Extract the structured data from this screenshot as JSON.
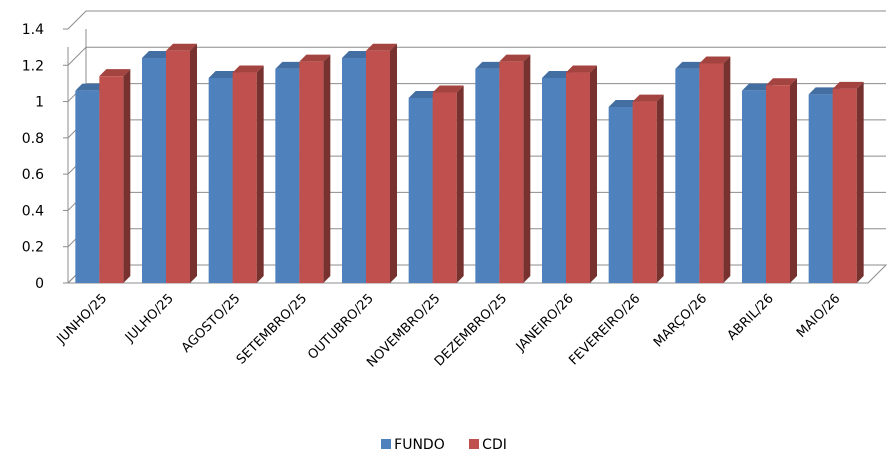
{
  "chart_data": {
    "type": "bar",
    "title": "",
    "xlabel": "",
    "ylabel": "",
    "categories": [
      "JUNHO/25",
      "JULHO/25",
      "AGOSTO/25",
      "SETEMBRO/25",
      "OUTUBRO/25",
      "NOVEMBRO/25",
      "DEZEMBRO/25",
      "JANEIRO/26",
      "FEVEREIRO/26",
      "MARÇO/26",
      "ABRIL/26",
      "MAIO/26"
    ],
    "series": [
      {
        "name": "FUNDO",
        "color": "#4F81BD",
        "values": [
          1.06,
          1.24,
          1.13,
          1.18,
          1.24,
          1.02,
          1.18,
          1.13,
          0.97,
          1.18,
          1.06,
          1.04
        ]
      },
      {
        "name": "CDI",
        "color": "#C0504D",
        "values": [
          1.14,
          1.28,
          1.16,
          1.22,
          1.28,
          1.05,
          1.22,
          1.16,
          1.0,
          1.21,
          1.09,
          1.07
        ]
      }
    ],
    "ylim": [
      0,
      1.4
    ],
    "yticks": [
      "0",
      "0.2",
      "0.4",
      "0.6",
      "0.8",
      "1",
      "1.2",
      "1.4"
    ],
    "grid": true,
    "legend": "bottom"
  }
}
